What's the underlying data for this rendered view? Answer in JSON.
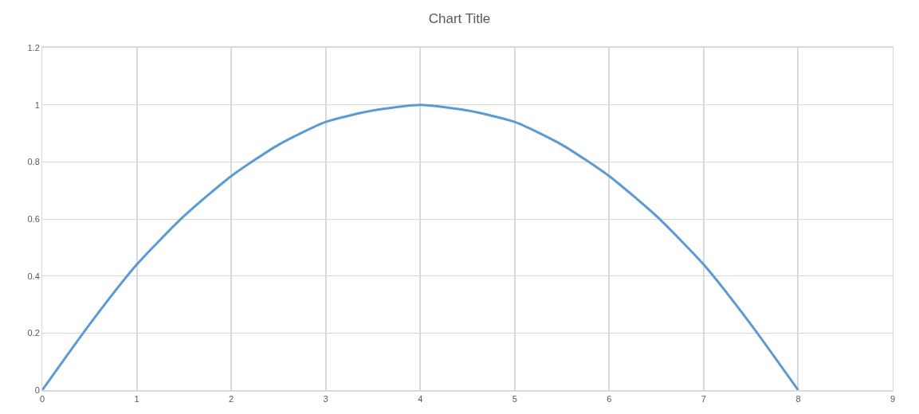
{
  "chart_data": {
    "type": "line",
    "title": "Chart Title",
    "x": [
      0,
      0.5,
      1,
      1.5,
      2,
      2.5,
      3,
      3.5,
      4,
      4.5,
      5,
      5.5,
      6,
      6.5,
      7,
      7.5,
      8
    ],
    "series": [
      {
        "color": "#5b9bd5",
        "values": [
          0,
          0.23,
          0.44,
          0.61,
          0.75,
          0.86,
          0.94,
          0.98,
          1,
          0.98,
          0.94,
          0.86,
          0.75,
          0.61,
          0.44,
          0.23,
          0
        ]
      }
    ],
    "xlim": [
      0,
      9
    ],
    "ylim": [
      0,
      1.2
    ],
    "xticks": [
      0,
      1,
      2,
      3,
      4,
      5,
      6,
      7,
      8,
      9
    ],
    "yticks": [
      0,
      0.2,
      0.4,
      0.6,
      0.8,
      1,
      1.2
    ],
    "grid": true
  }
}
